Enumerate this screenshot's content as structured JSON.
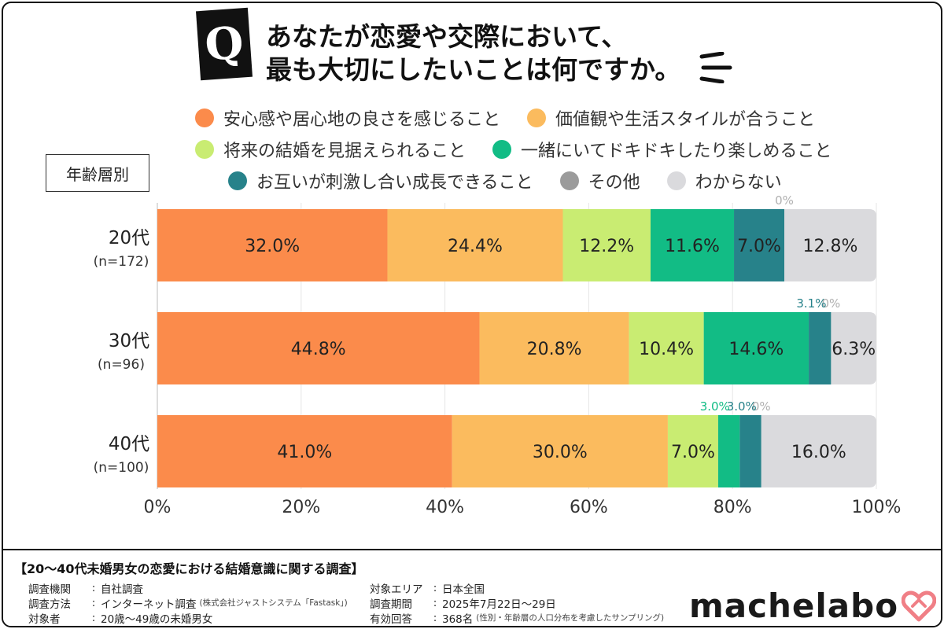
{
  "question": {
    "badge": "Q",
    "line1": "あなたが恋愛や交際において、",
    "line2": "最も大切にしたいことは何ですか。"
  },
  "age_group_label": "年齢層別",
  "colors": {
    "c1": "#fb8b4b",
    "c2": "#fbbb5e",
    "c3": "#c9ec72",
    "c4": "#12bc85",
    "c5": "#27828a",
    "c6": "#9b9b9b",
    "c7": "#dadadd"
  },
  "chart_data": {
    "type": "bar",
    "orientation": "horizontal",
    "stacked": true,
    "percent_stacked": true,
    "categories": [
      "20代",
      "30代",
      "40代"
    ],
    "category_sublabels": [
      "(n=172)",
      "(n=96)",
      "(n=100)"
    ],
    "series": [
      {
        "name": "安心感や居心地の良さを感じること",
        "values": [
          32.0,
          44.8,
          41.0
        ]
      },
      {
        "name": "価値観や生活スタイルが合うこと",
        "values": [
          24.4,
          20.8,
          30.0
        ]
      },
      {
        "name": "将来の結婚を見据えられること",
        "values": [
          12.2,
          10.4,
          7.0
        ]
      },
      {
        "name": "一緒にいてドキドキしたり楽しめること",
        "values": [
          11.6,
          14.6,
          3.0
        ]
      },
      {
        "name": "お互いが刺激し合い成長できること",
        "values": [
          7.0,
          3.1,
          3.0
        ]
      },
      {
        "name": "その他",
        "values": [
          0,
          0,
          0
        ]
      },
      {
        "name": "わからない",
        "values": [
          12.8,
          6.3,
          16.0
        ]
      }
    ],
    "data_labels": [
      [
        "32.0%",
        "24.4%",
        "12.2%",
        "11.6%",
        "7.0%",
        "0%",
        "12.8%"
      ],
      [
        "44.8%",
        "20.8%",
        "10.4%",
        "14.6%",
        "3.1%",
        "0%",
        "6.3%"
      ],
      [
        "41.0%",
        "30.0%",
        "7.0%",
        "3.0%",
        "3.0%",
        "0%",
        "16.0%"
      ]
    ],
    "outside_label_flags": [
      [
        false,
        false,
        false,
        false,
        false,
        true,
        false
      ],
      [
        false,
        false,
        false,
        false,
        true,
        true,
        false
      ],
      [
        false,
        false,
        false,
        true,
        true,
        true,
        false
      ]
    ],
    "x_ticks": [
      "0%",
      "20%",
      "40%",
      "60%",
      "80%",
      "100%"
    ],
    "xlim": [
      0,
      100
    ],
    "grid": true,
    "legend_position": "top"
  },
  "footer": {
    "title": "【20～40代未婚男女の恋愛における結婚意識に関する調査】",
    "left": [
      {
        "label": "調査機関",
        "value": "自社調査",
        "note": ""
      },
      {
        "label": "調査方法",
        "value": "インターネット調査",
        "note": "(株式会社ジャストシステム「Fastask」)"
      },
      {
        "label": "対象者",
        "value": "20歳～49歳の未婚男女",
        "note": ""
      }
    ],
    "right": [
      {
        "label": "対象エリア",
        "value": "日本全国",
        "note": ""
      },
      {
        "label": "調査期間",
        "value": "2025年7月22日～29日",
        "note": ""
      },
      {
        "label": "有効回答",
        "value": "368名",
        "note": "(性別・年齢層の人口分布を考慮したサンプリング)"
      }
    ],
    "separator": ":"
  },
  "logo": {
    "text": "machelabo",
    "icon": "heart-icon",
    "color": "#f07f86"
  }
}
